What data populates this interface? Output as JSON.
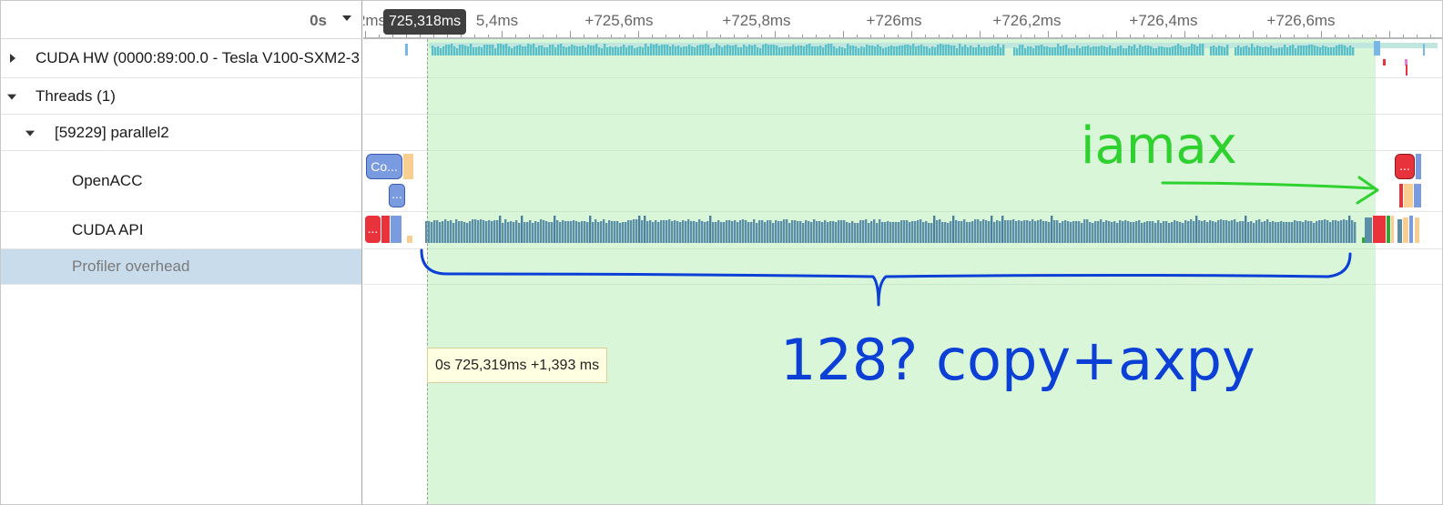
{
  "header": {
    "time_origin": "0s"
  },
  "tree": {
    "rows": [
      {
        "label": "CUDA HW (0000:89:00.0 - Tesla V100-SXM2-3",
        "expanded": false
      },
      {
        "label": "Threads (1)",
        "expanded": true
      },
      {
        "label": "[59229] parallel2",
        "expanded": true
      },
      {
        "label": "OpenACC"
      },
      {
        "label": "CUDA API"
      },
      {
        "label": "Profiler overhead",
        "selected": true
      }
    ]
  },
  "ruler": {
    "cursor_time": "725,318ms",
    "ticks": [
      "2ms",
      "5,4ms",
      "+725,6ms",
      "+725,8ms",
      "+726ms",
      "+726,2ms",
      "+726,4ms",
      "+726,6ms"
    ]
  },
  "selection": {
    "tooltip": "0s 725,319ms +1,393 ms"
  },
  "openacc_blocks": [
    "Co...",
    "...",
    "..."
  ],
  "cuda_api_blocks": [
    "..."
  ],
  "colors": {
    "selection": "#aaebaa",
    "hw_bar": "#5bbfca",
    "api_bar": "#5b8fa8",
    "openacc_block": "#7a9be0",
    "error_block": "#e8323c",
    "annotation_green": "#2ed12e",
    "annotation_blue": "#0b3fd6"
  },
  "annotations": {
    "note_1": "iamax",
    "note_2": "128? copy+axpy"
  }
}
